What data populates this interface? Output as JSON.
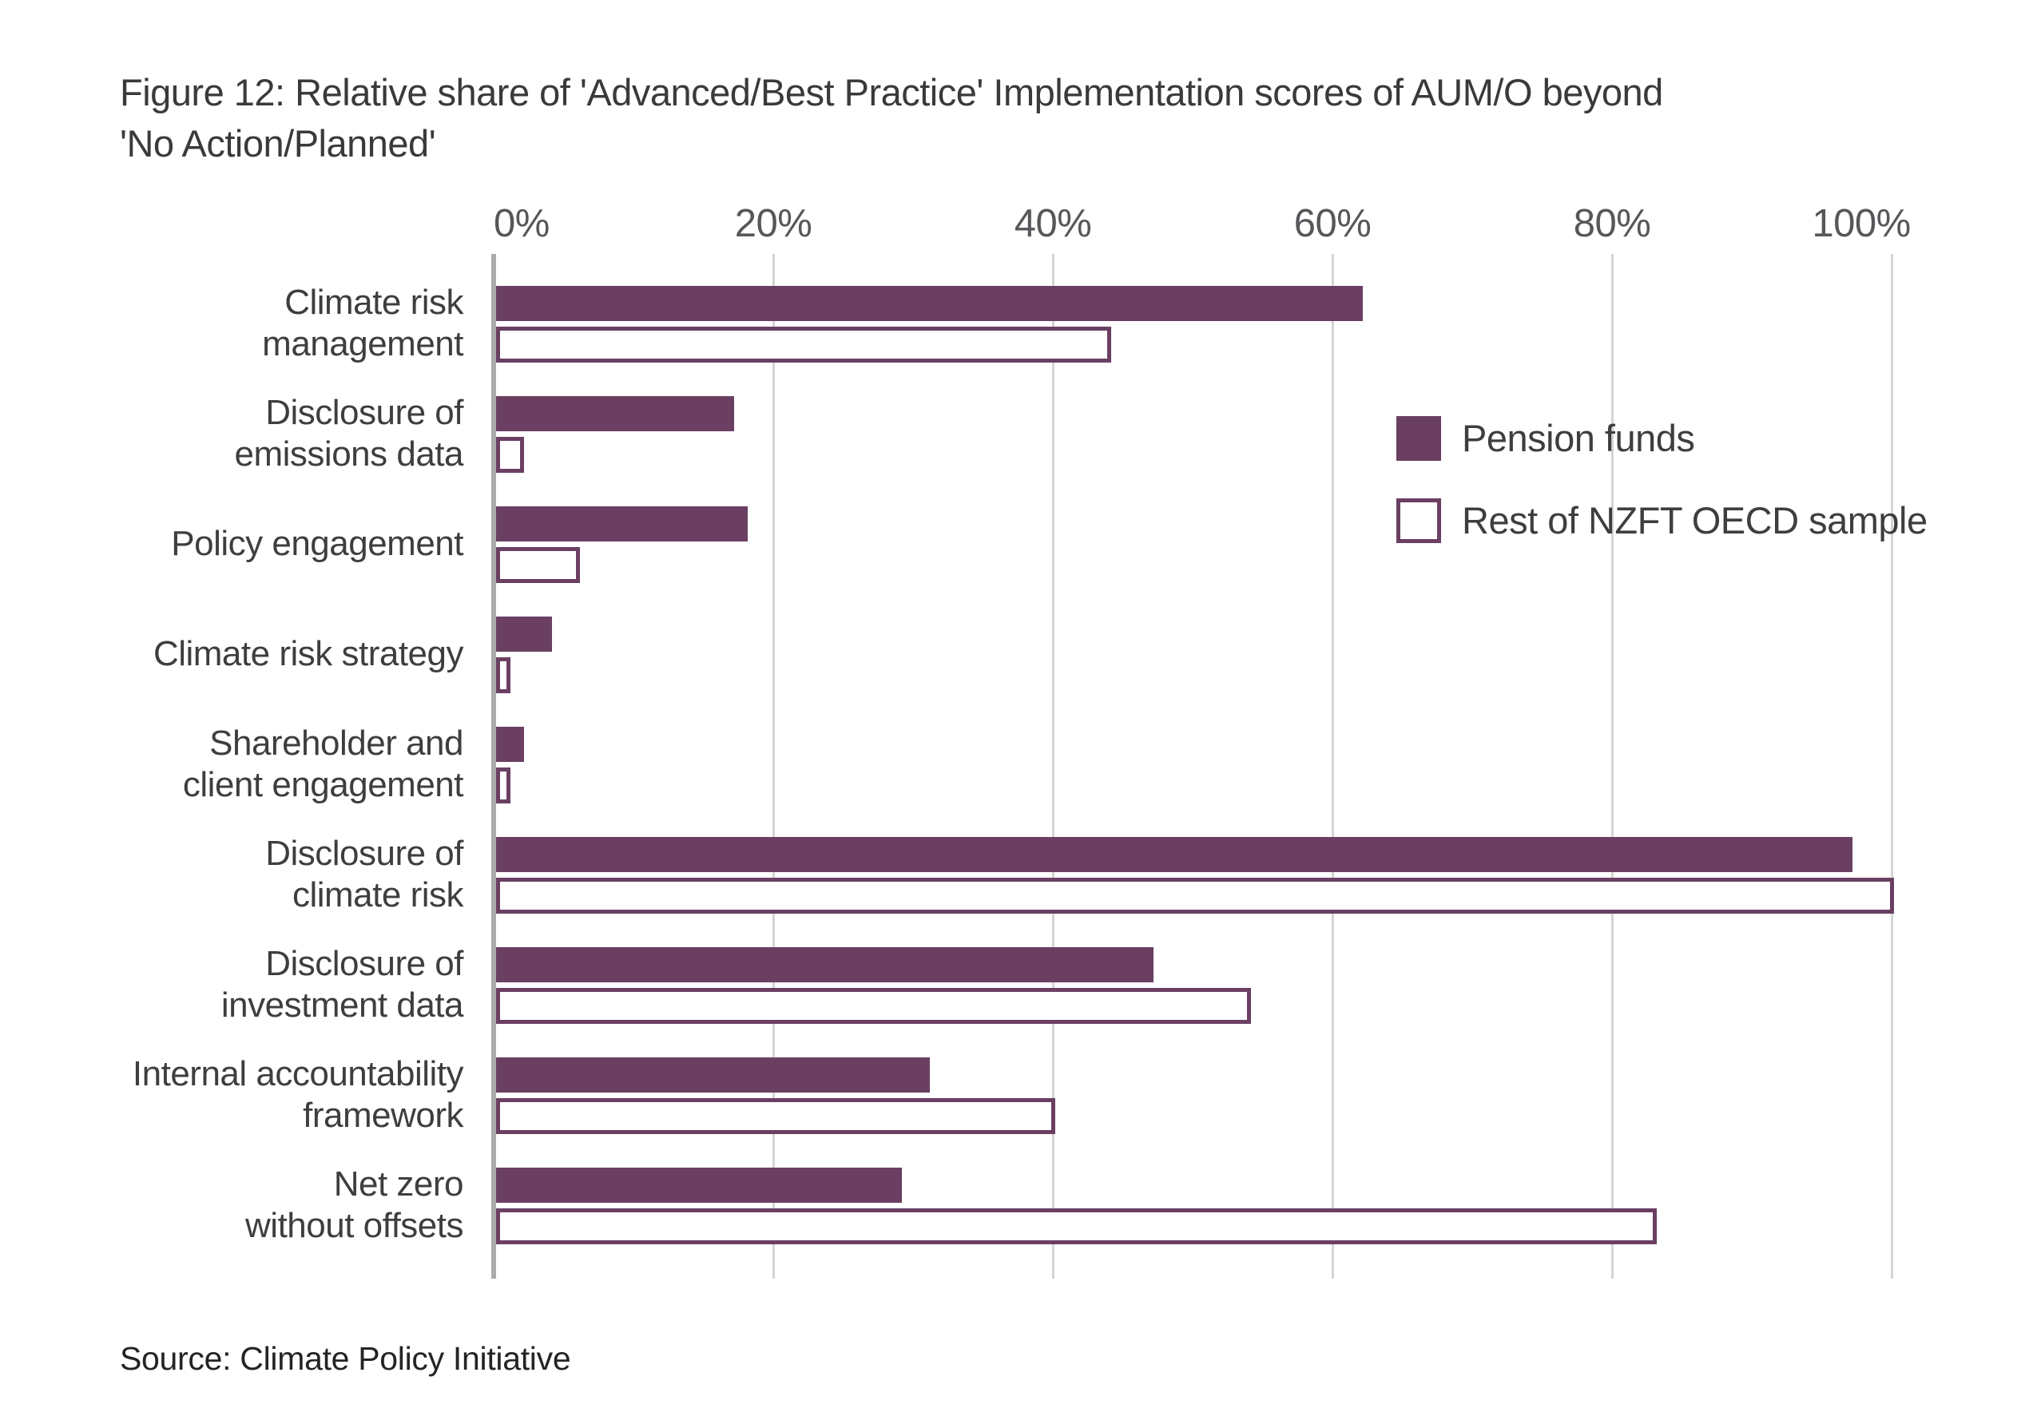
{
  "title": {
    "line1": "Figure 12: Relative share of 'Advanced/Best Practice' Implementation scores of AUM/O beyond",
    "line2": "'No Action/Planned'"
  },
  "source": "Source: Climate Policy Initiative",
  "legend": {
    "items": [
      {
        "label": "Pension funds",
        "swatch": "filled"
      },
      {
        "label": "Rest of NZFT OECD sample",
        "swatch": "outlined"
      }
    ]
  },
  "colors": {
    "bar_purple": "#6a3f62",
    "gridline": "#d4d4d4",
    "axis_line": "#ababab",
    "title_text": "#3a3a3c",
    "tick_text": "#56575a",
    "category_text": "#3e3e40",
    "source_text": "#242424",
    "background": "#ffffff"
  },
  "chart_data": {
    "type": "bar",
    "orientation": "horizontal",
    "title": "Figure 12: Relative share of 'Advanced/Best Practice' Implementation scores of AUM/O beyond 'No Action/Planned'",
    "xlabel": "",
    "ylabel": "",
    "xlim": [
      0,
      100
    ],
    "x_ticks": [
      "0%",
      "20%",
      "40%",
      "60%",
      "80%",
      "100%"
    ],
    "x_tick_values": [
      0,
      20,
      40,
      60,
      80,
      100
    ],
    "grid": "vertical",
    "legend_position": "right",
    "categories": [
      "Climate risk management",
      "Disclosure of emissions data",
      "Policy engagement",
      "Climate risk strategy",
      "Shareholder and client engagement",
      "Disclosure of climate risk",
      "Disclosure of investment data",
      "Internal accountability framework",
      "Net zero without offsets"
    ],
    "category_display_lines": [
      [
        "Climate risk",
        "management"
      ],
      [
        "Disclosure of",
        "emissions data"
      ],
      [
        "Policy engagement"
      ],
      [
        "Climate risk strategy"
      ],
      [
        "Shareholder and",
        "client engagement"
      ],
      [
        "Disclosure of",
        "climate risk"
      ],
      [
        "Disclosure of",
        "investment data"
      ],
      [
        "Internal accountability",
        "framework"
      ],
      [
        "Net zero",
        "without offsets"
      ]
    ],
    "series": [
      {
        "name": "Pension funds",
        "style": "filled",
        "values": [
          62,
          17,
          18,
          4,
          2,
          97,
          47,
          31,
          29
        ]
      },
      {
        "name": "Rest of NZFT OECD sample",
        "style": "outlined",
        "values": [
          44,
          2,
          6,
          1,
          1,
          100,
          54,
          40,
          83
        ]
      }
    ]
  }
}
